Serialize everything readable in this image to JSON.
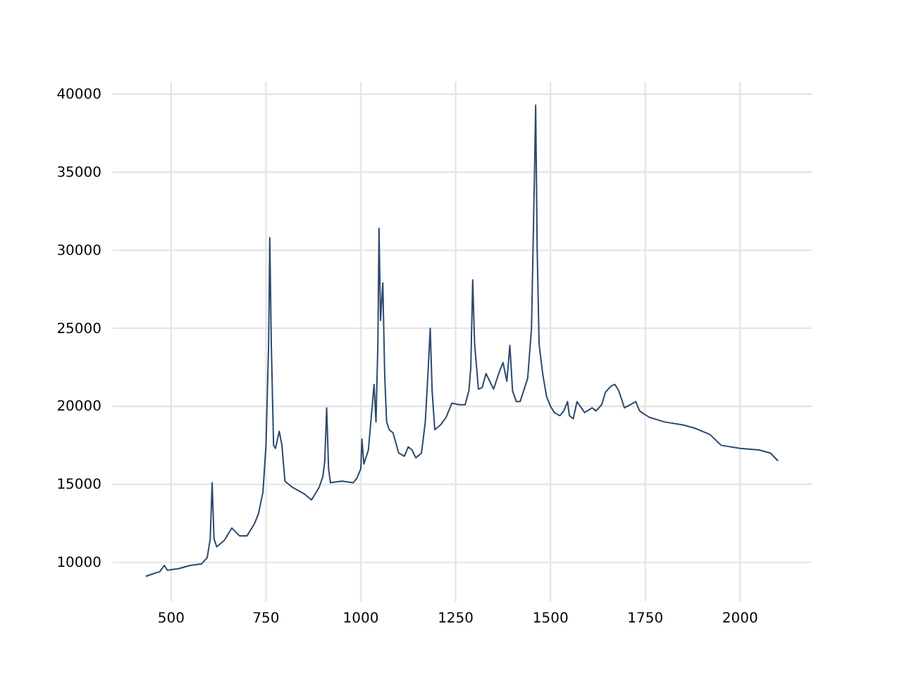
{
  "chart_data": {
    "type": "line",
    "xlim": [
      346,
      2189
    ],
    "ylim": [
      7500,
      40800
    ],
    "xticks": [
      500,
      750,
      1000,
      1250,
      1500,
      1750,
      2000
    ],
    "yticks": [
      10000,
      15000,
      20000,
      25000,
      30000,
      35000,
      40000
    ],
    "grid": true,
    "marker": "none",
    "line_style": "solid",
    "series": [
      {
        "color": "#2b4a6e",
        "x": [
          433,
          450,
          470,
          482,
          490,
          520,
          550,
          580,
          595,
          603,
          608,
          613,
          620,
          640,
          660,
          680,
          700,
          720,
          730,
          742,
          750,
          757,
          760,
          764,
          770,
          775,
          785,
          792,
          800,
          820,
          850,
          870,
          890,
          900,
          905,
          910,
          915,
          920,
          950,
          980,
          990,
          1000,
          1003,
          1008,
          1020,
          1030,
          1035,
          1040,
          1045,
          1048,
          1052,
          1058,
          1063,
          1068,
          1075,
          1085,
          1100,
          1115,
          1125,
          1135,
          1145,
          1160,
          1170,
          1178,
          1183,
          1188,
          1195,
          1210,
          1225,
          1240,
          1260,
          1275,
          1285,
          1290,
          1295,
          1300,
          1310,
          1320,
          1330,
          1340,
          1350,
          1365,
          1375,
          1385,
          1393,
          1400,
          1410,
          1420,
          1440,
          1450,
          1458,
          1461,
          1465,
          1470,
          1480,
          1490,
          1500,
          1510,
          1525,
          1535,
          1545,
          1550,
          1560,
          1570,
          1590,
          1610,
          1620,
          1635,
          1645,
          1660,
          1670,
          1680,
          1695,
          1710,
          1725,
          1735,
          1760,
          1800,
          1850,
          1880,
          1920,
          1950,
          2000,
          2050,
          2080,
          2100
        ],
        "values": [
          9100,
          9250,
          9400,
          9800,
          9500,
          9600,
          9800,
          9900,
          10300,
          11500,
          15100,
          11500,
          11000,
          11400,
          12200,
          11700,
          11700,
          12500,
          13100,
          14500,
          17500,
          24000,
          30800,
          24000,
          17500,
          17300,
          18400,
          17500,
          15200,
          14800,
          14400,
          14000,
          14800,
          15500,
          16500,
          19900,
          16000,
          15100,
          15200,
          15100,
          15400,
          16000,
          17900,
          16300,
          17200,
          20000,
          21400,
          19000,
          24000,
          31400,
          25500,
          27900,
          22000,
          19000,
          18500,
          18300,
          17000,
          16800,
          17400,
          17200,
          16700,
          17000,
          19000,
          22500,
          25000,
          21000,
          18500,
          18800,
          19300,
          20200,
          20100,
          20100,
          21000,
          22500,
          28100,
          24000,
          21100,
          21200,
          22100,
          21600,
          21100,
          22200,
          22800,
          21600,
          23900,
          21000,
          20300,
          20300,
          21800,
          25000,
          35000,
          39300,
          30000,
          24000,
          22000,
          20600,
          20000,
          19600,
          19400,
          19700,
          20300,
          19400,
          19200,
          20300,
          19600,
          19900,
          19700,
          20100,
          20900,
          21300,
          21400,
          21000,
          19900,
          20100,
          20300,
          19700,
          19300,
          19000,
          18800,
          18600,
          18200,
          17500,
          17300,
          17200,
          17000,
          16500
        ]
      }
    ]
  }
}
